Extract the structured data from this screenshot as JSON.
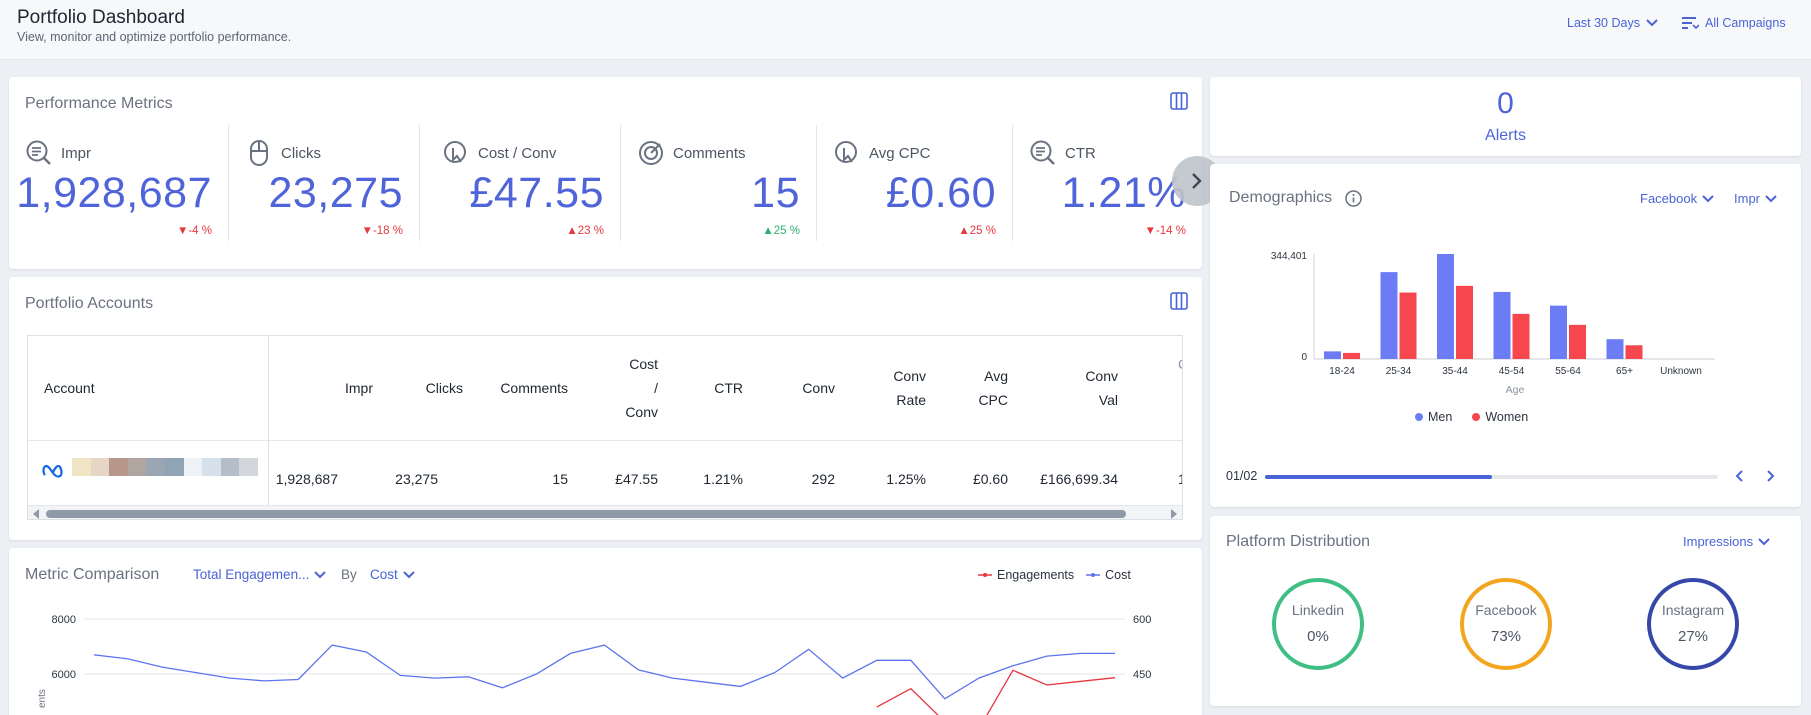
{
  "header": {
    "title": "Portfolio Dashboard",
    "subtitle": "View, monitor and optimize portfolio performance.",
    "date_range": "Last 30 Days",
    "campaigns": "All Campaigns"
  },
  "performance": {
    "title": "Performance Metrics",
    "metrics": [
      {
        "label": "Impr",
        "value": "1,928,687",
        "change": "-4 %",
        "icon": "search-list-icon"
      },
      {
        "label": "Clicks",
        "value": "23,275",
        "change": "-18 %",
        "icon": "mouse-icon"
      },
      {
        "label": "Cost / Conv",
        "value": "£47.55",
        "change": "23 %",
        "icon": "cursor-coin-icon"
      },
      {
        "label": "Comments",
        "value": "15",
        "change": "25 %",
        "icon": "target-icon"
      },
      {
        "label": "Avg CPC",
        "value": "£0.60",
        "change": "25 %",
        "icon": "cursor-coin-icon"
      },
      {
        "label": "CTR",
        "value": "1.21%",
        "change": "-14 %",
        "icon": "search-list-icon"
      }
    ]
  },
  "accounts": {
    "title": "Portfolio Accounts",
    "columns": [
      "Account",
      "Impr",
      "Clicks",
      "Comments",
      "Cost",
      "/",
      "Conv",
      "CTR",
      "Conv",
      "Conv",
      "Rate",
      "Avg",
      "CPC",
      "Conv",
      "Val",
      "C"
    ],
    "row": [
      "1,928,687",
      "23,275",
      "15",
      "£47.55",
      "1.21%",
      "292",
      "1.25%",
      "£0.60",
      "£166,699.34",
      "1"
    ]
  },
  "alerts": {
    "count": "0",
    "label": "Alerts"
  },
  "demographics": {
    "title": "Demographics",
    "platform": "Facebook",
    "metric": "Impr",
    "pager": "01/02",
    "pager_progress": 0.5,
    "men_color": "#6b7cf5",
    "women_color": "#f5474d"
  },
  "platform_dist": {
    "title": "Platform Distribution",
    "metric": "Impressions",
    "items": [
      {
        "name": "Linkedin",
        "value": "0%",
        "color": "#3fbf84"
      },
      {
        "name": "Facebook",
        "value": "73%",
        "color": "#f2a51d"
      },
      {
        "name": "Instagram",
        "value": "27%",
        "color": "#3547a8"
      }
    ]
  },
  "comparison": {
    "title": "Metric Comparison",
    "metric_a": "Total Engagemen...",
    "by_label": "By",
    "metric_b": "Cost",
    "legend_a": "Engagements",
    "legend_b": "Cost",
    "y_left_label": "ents",
    "color_a": "#e8363e",
    "color_b": "#5e74ee"
  },
  "chart_data": [
    {
      "type": "bar",
      "xlabel": "Age",
      "categories": [
        "18-24",
        "25-34",
        "35-44",
        "45-54",
        "55-64",
        "65+",
        "Unknown"
      ],
      "ytick_labels": [
        "344,401",
        "0"
      ],
      "ylim": [
        0,
        344401
      ],
      "legend": "bottom",
      "series": [
        {
          "name": "Men",
          "values": [
            25000,
            285000,
            344401,
            220000,
            175000,
            65000,
            0
          ]
        },
        {
          "name": "Women",
          "values": [
            20000,
            218000,
            240000,
            148000,
            112000,
            45000,
            0
          ]
        }
      ]
    },
    {
      "type": "line",
      "y_left_ticks": [
        "8000",
        "6000"
      ],
      "y_right_ticks": [
        "600",
        "450"
      ],
      "legend": "top-right",
      "series": [
        {
          "name": "Cost",
          "axis": "left",
          "values": [
            6700,
            6550,
            6250,
            6050,
            5850,
            5750,
            5800,
            7050,
            6800,
            5950,
            5850,
            5900,
            5500,
            6000,
            6750,
            7050,
            6150,
            5850,
            5700,
            5550,
            6050,
            6900,
            5850,
            6500,
            6500,
            5100,
            5850,
            6300,
            6650,
            6750,
            6750
          ]
        },
        {
          "name": "Engagements",
          "axis": "right",
          "values": [
            null,
            null,
            null,
            null,
            null,
            null,
            null,
            null,
            null,
            null,
            null,
            null,
            null,
            null,
            null,
            null,
            null,
            null,
            null,
            null,
            null,
            null,
            null,
            360,
            410,
            320,
            300,
            460,
            420,
            430,
            440
          ]
        }
      ]
    }
  ]
}
